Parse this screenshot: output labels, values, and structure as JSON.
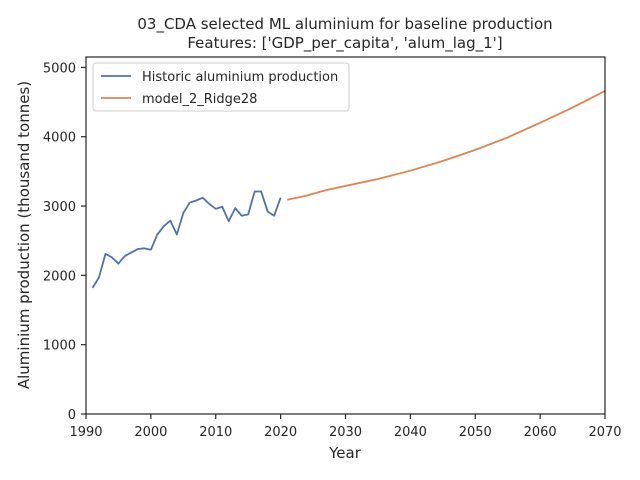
{
  "chart_data": {
    "type": "line",
    "title": "03_CDA selected ML aluminium for baseline production",
    "subtitle": "Features: ['GDP_per_capita', 'alum_lag_1']",
    "xlabel": "Year",
    "ylabel": "Aluminium production (thousand tonnes)",
    "xlim": [
      1990,
      2070
    ],
    "ylim": [
      0,
      5150
    ],
    "xticks": [
      1990,
      2000,
      2010,
      2020,
      2030,
      2040,
      2050,
      2060,
      2070
    ],
    "yticks": [
      0,
      1000,
      2000,
      3000,
      4000,
      5000
    ],
    "grid": false,
    "legend_position": "top-left",
    "series": [
      {
        "name": "Historic aluminium production",
        "color": "#4c72b0",
        "x": [
          1991,
          1992,
          1993,
          1994,
          1995,
          1996,
          1997,
          1998,
          1999,
          2000,
          2001,
          2002,
          2003,
          2004,
          2005,
          2006,
          2007,
          2008,
          2009,
          2010,
          2011,
          2012,
          2013,
          2014,
          2015,
          2016,
          2017,
          2018,
          2019,
          2020
        ],
        "values": [
          1820,
          1970,
          2310,
          2260,
          2170,
          2280,
          2330,
          2380,
          2390,
          2370,
          2590,
          2710,
          2790,
          2590,
          2900,
          3050,
          3080,
          3120,
          3030,
          2960,
          2990,
          2780,
          2970,
          2860,
          2880,
          3210,
          3210,
          2920,
          2860,
          3120
        ]
      },
      {
        "name": "model_2_Ridge28",
        "color": "#dd8452",
        "x": [
          2021,
          2024,
          2027,
          2030,
          2035,
          2040,
          2045,
          2050,
          2055,
          2060,
          2065,
          2070
        ],
        "values": [
          3090,
          3150,
          3230,
          3290,
          3390,
          3510,
          3650,
          3810,
          3990,
          4200,
          4420,
          4660
        ]
      }
    ]
  }
}
